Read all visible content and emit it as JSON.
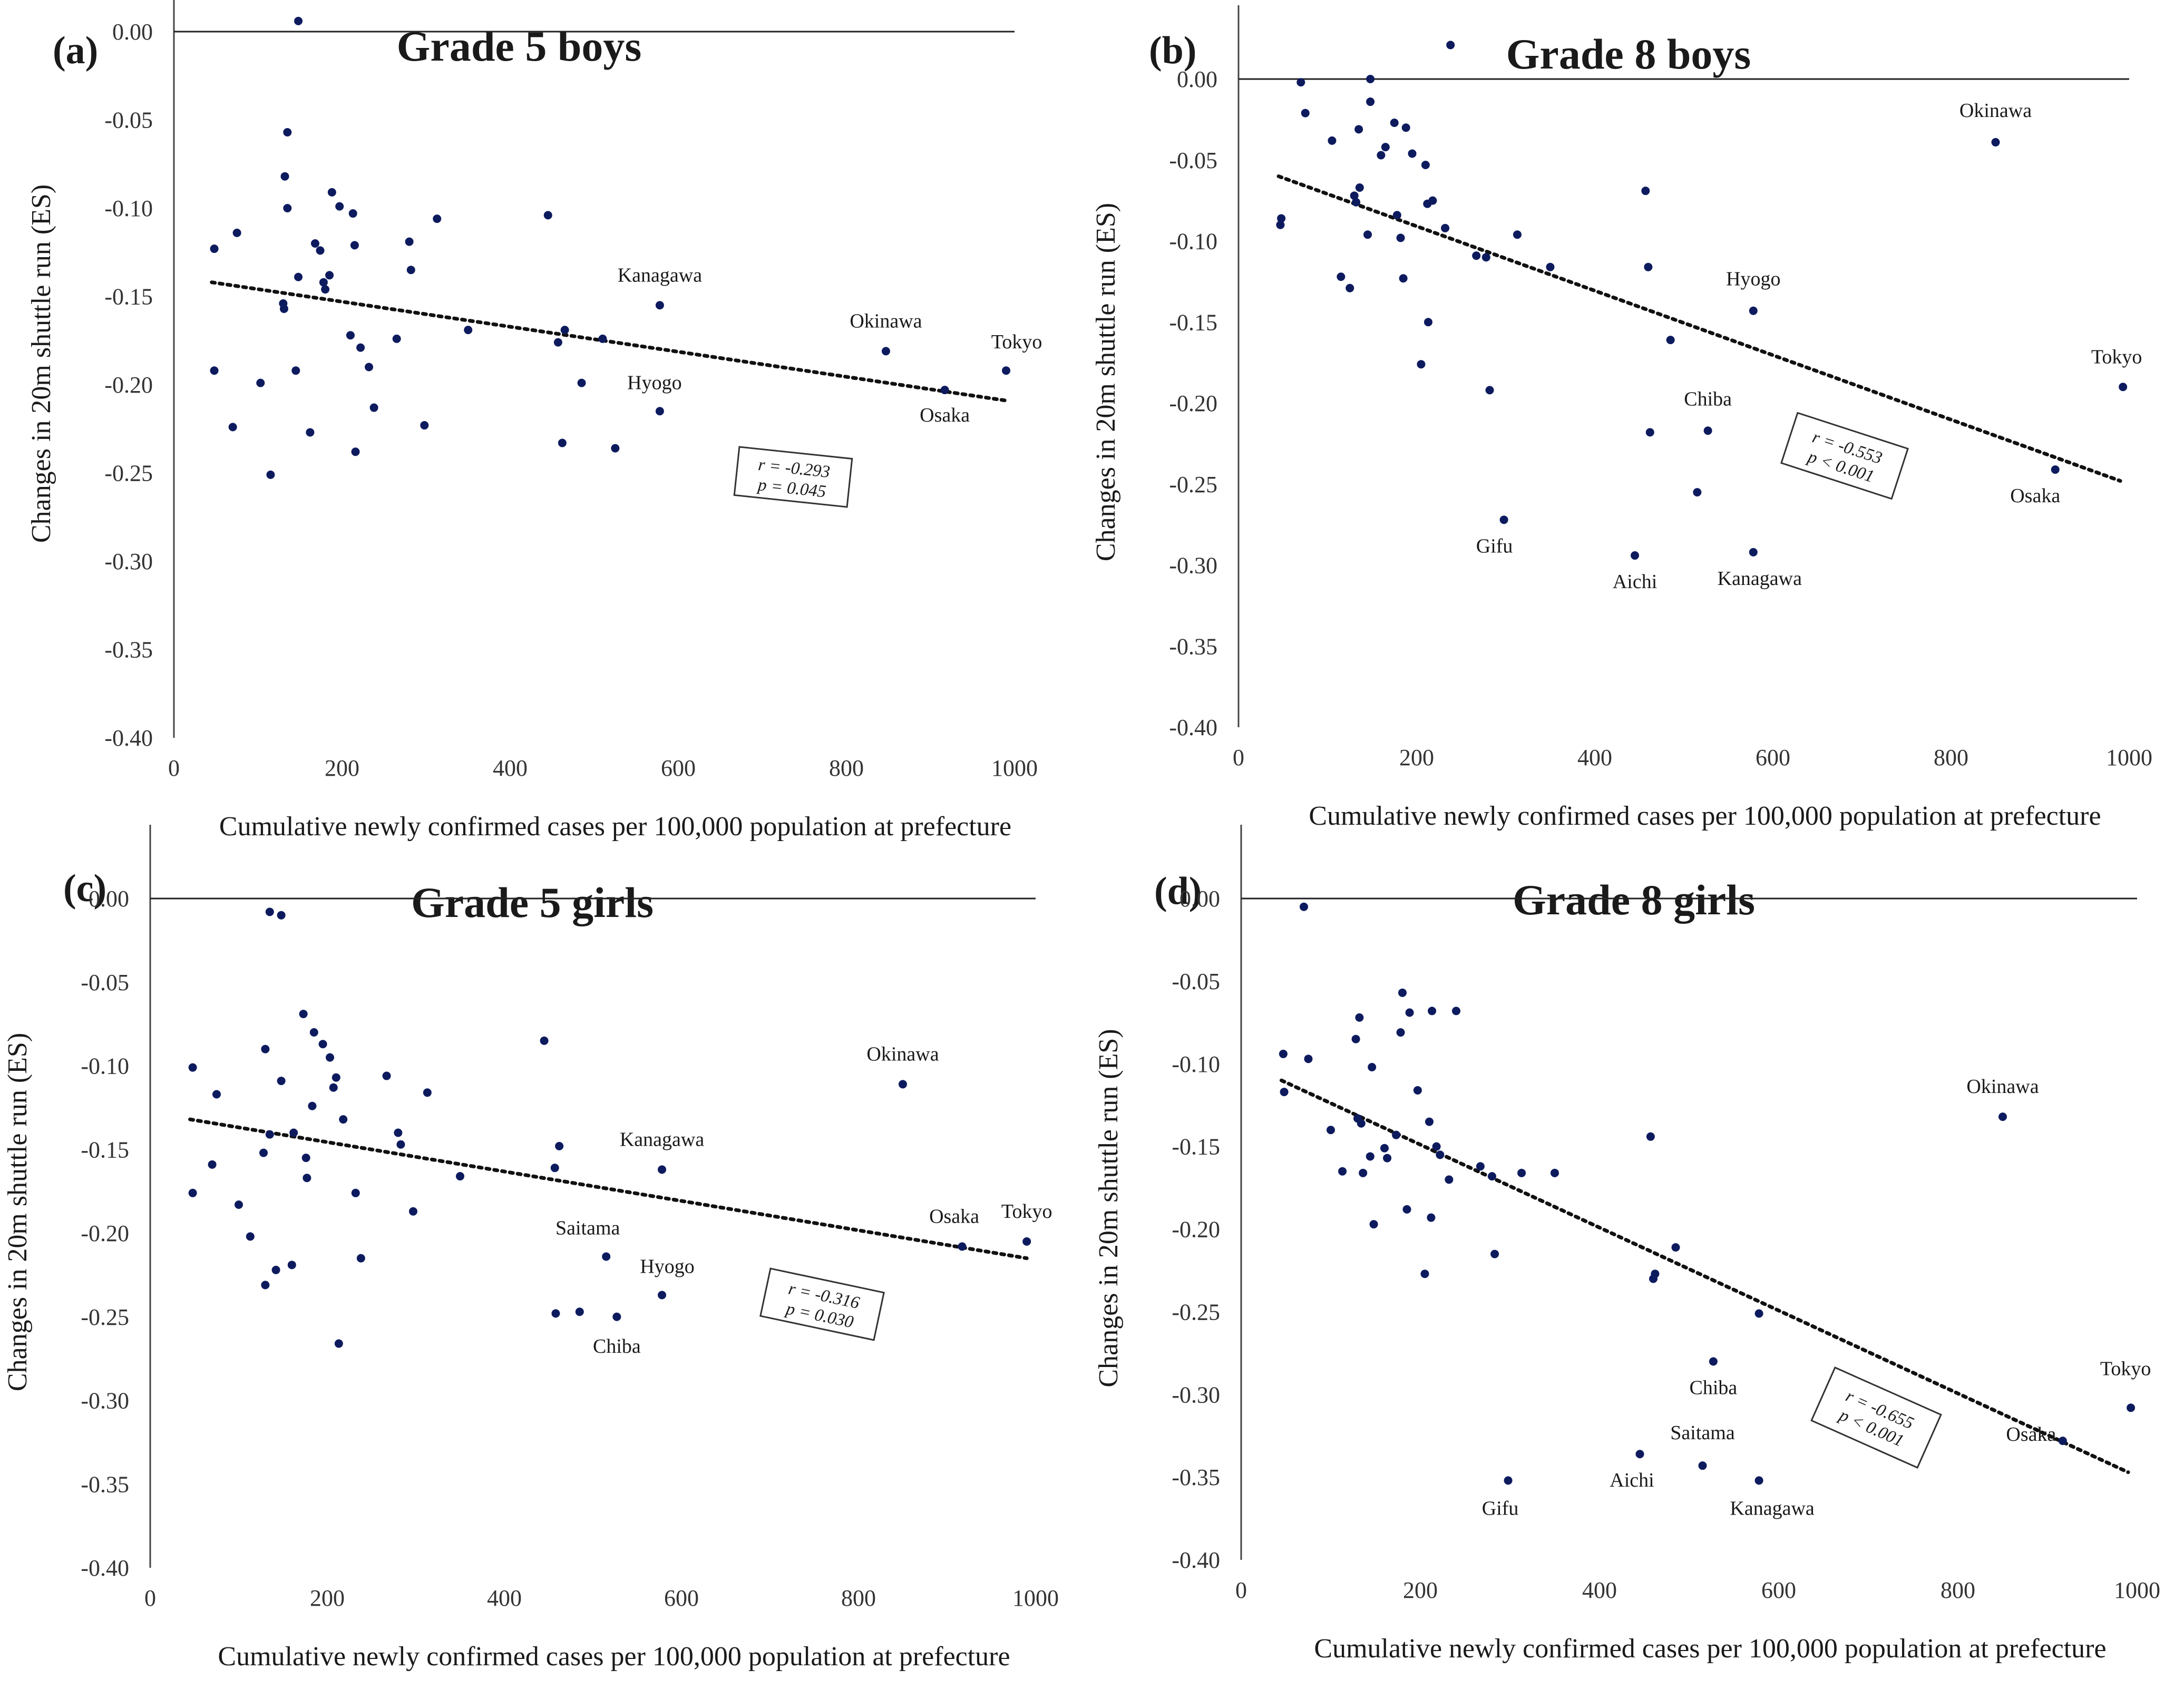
{
  "chart_data": [
    {
      "type": "scatter",
      "panel_label": "(a)",
      "title": "Grade 5 boys",
      "xlabel": "Cumulative newly confirmed cases per 100,000 population at prefecture",
      "ylabel": "Changes in 20m shuttle run (ES)",
      "xlim": [
        0,
        1000
      ],
      "ylim": [
        -0.4,
        0.0
      ],
      "x_ticks": [
        "0",
        "200",
        "400",
        "600",
        "800",
        "1000"
      ],
      "y_ticks": [
        "0.00",
        "-0.05",
        "-0.10",
        "-0.15",
        "-0.20",
        "-0.25",
        "-0.30",
        "-0.35",
        "-0.40"
      ],
      "grid": false,
      "trendline": {
        "style": "dotted",
        "x": [
          45,
          990
        ],
        "y": [
          -0.142,
          -0.209
        ]
      },
      "stats": {
        "r": "r = -0.293",
        "p": "p = 0.045"
      },
      "points": [
        {
          "x": 148,
          "y": 0.006
        },
        {
          "x": 135,
          "y": -0.057
        },
        {
          "x": 132,
          "y": -0.082
        },
        {
          "x": 135,
          "y": -0.1
        },
        {
          "x": 75,
          "y": -0.114
        },
        {
          "x": 48,
          "y": -0.123
        },
        {
          "x": 148,
          "y": -0.139
        },
        {
          "x": 130,
          "y": -0.154
        },
        {
          "x": 131,
          "y": -0.157
        },
        {
          "x": 48,
          "y": -0.192
        },
        {
          "x": 103,
          "y": -0.199
        },
        {
          "x": 145,
          "y": -0.192
        },
        {
          "x": 70,
          "y": -0.224
        },
        {
          "x": 115,
          "y": -0.251
        },
        {
          "x": 162,
          "y": -0.227
        },
        {
          "x": 168,
          "y": -0.12
        },
        {
          "x": 174,
          "y": -0.124
        },
        {
          "x": 178,
          "y": -0.142
        },
        {
          "x": 180,
          "y": -0.146
        },
        {
          "x": 185,
          "y": -0.138
        },
        {
          "x": 188,
          "y": -0.091
        },
        {
          "x": 197,
          "y": -0.099
        },
        {
          "x": 210,
          "y": -0.172
        },
        {
          "x": 213,
          "y": -0.103
        },
        {
          "x": 215,
          "y": -0.121
        },
        {
          "x": 216,
          "y": -0.238
        },
        {
          "x": 222,
          "y": -0.179
        },
        {
          "x": 232,
          "y": -0.19
        },
        {
          "x": 238,
          "y": -0.213
        },
        {
          "x": 265,
          "y": -0.174
        },
        {
          "x": 280,
          "y": -0.119
        },
        {
          "x": 282,
          "y": -0.135
        },
        {
          "x": 298,
          "y": -0.223
        },
        {
          "x": 313,
          "y": -0.106
        },
        {
          "x": 350,
          "y": -0.169
        },
        {
          "x": 445,
          "y": -0.104
        },
        {
          "x": 457,
          "y": -0.176
        },
        {
          "x": 462,
          "y": -0.233
        },
        {
          "x": 465,
          "y": -0.169
        },
        {
          "x": 485,
          "y": -0.199
        },
        {
          "x": 510,
          "y": -0.174
        },
        {
          "x": 525,
          "y": -0.236
        },
        {
          "x": 578,
          "y": -0.155
        },
        {
          "x": 578,
          "y": -0.215
        },
        {
          "x": 847,
          "y": -0.181
        },
        {
          "x": 917,
          "y": -0.203
        },
        {
          "x": 990,
          "y": -0.192
        }
      ],
      "point_labels": [
        {
          "text": "Kanagawa",
          "x": 578,
          "y": -0.155
        },
        {
          "text": "Hyogo",
          "x": 578,
          "y": -0.215
        },
        {
          "text": "Okinawa",
          "x": 847,
          "y": -0.181
        },
        {
          "text": "Osaka",
          "x": 917,
          "y": -0.203
        },
        {
          "text": "Tokyo",
          "x": 990,
          "y": -0.192
        }
      ]
    },
    {
      "type": "scatter",
      "panel_label": "(b)",
      "title": "Grade 8 boys",
      "xlabel": "Cumulative newly confirmed cases per 100,000 population at prefecture",
      "ylabel": "Changes in 20m shuttle run (ES)",
      "xlim": [
        0,
        1000
      ],
      "ylim": [
        -0.4,
        0.0
      ],
      "x_ticks": [
        "0",
        "200",
        "400",
        "600",
        "800",
        "1000"
      ],
      "y_ticks": [
        "0.00",
        "-0.05",
        "-0.10",
        "-0.15",
        "-0.20",
        "-0.25",
        "-0.30",
        "-0.35",
        "-0.40"
      ],
      "grid": false,
      "trendline": {
        "style": "dotted",
        "x": [
          45,
          990
        ],
        "y": [
          -0.06,
          -0.248
        ]
      },
      "stats": {
        "r": "r = -0.553",
        "p": "p < 0.001"
      },
      "points": [
        {
          "x": 238,
          "y": 0.021
        },
        {
          "x": 70,
          "y": -0.002
        },
        {
          "x": 148,
          "y": 0.0
        },
        {
          "x": 75,
          "y": -0.021
        },
        {
          "x": 105,
          "y": -0.038
        },
        {
          "x": 48,
          "y": -0.086
        },
        {
          "x": 47,
          "y": -0.09
        },
        {
          "x": 115,
          "y": -0.122
        },
        {
          "x": 125,
          "y": -0.129
        },
        {
          "x": 130,
          "y": -0.072
        },
        {
          "x": 132,
          "y": -0.076
        },
        {
          "x": 135,
          "y": -0.031
        },
        {
          "x": 136,
          "y": -0.067
        },
        {
          "x": 145,
          "y": -0.096
        },
        {
          "x": 148,
          "y": -0.014
        },
        {
          "x": 160,
          "y": -0.047
        },
        {
          "x": 165,
          "y": -0.042
        },
        {
          "x": 175,
          "y": -0.027
        },
        {
          "x": 178,
          "y": -0.084
        },
        {
          "x": 182,
          "y": -0.098
        },
        {
          "x": 185,
          "y": -0.123
        },
        {
          "x": 188,
          "y": -0.03
        },
        {
          "x": 195,
          "y": -0.046
        },
        {
          "x": 205,
          "y": -0.176
        },
        {
          "x": 210,
          "y": -0.053
        },
        {
          "x": 212,
          "y": -0.077
        },
        {
          "x": 213,
          "y": -0.15
        },
        {
          "x": 218,
          "y": -0.075
        },
        {
          "x": 232,
          "y": -0.092
        },
        {
          "x": 267,
          "y": -0.109
        },
        {
          "x": 278,
          "y": -0.11
        },
        {
          "x": 282,
          "y": -0.192
        },
        {
          "x": 298,
          "y": -0.272
        },
        {
          "x": 313,
          "y": -0.096
        },
        {
          "x": 350,
          "y": -0.116
        },
        {
          "x": 445,
          "y": -0.294
        },
        {
          "x": 457,
          "y": -0.069
        },
        {
          "x": 460,
          "y": -0.116
        },
        {
          "x": 462,
          "y": -0.218
        },
        {
          "x": 485,
          "y": -0.161
        },
        {
          "x": 515,
          "y": -0.255
        },
        {
          "x": 527,
          "y": -0.217
        },
        {
          "x": 578,
          "y": -0.143
        },
        {
          "x": 578,
          "y": -0.292
        },
        {
          "x": 850,
          "y": -0.039
        },
        {
          "x": 917,
          "y": -0.241
        },
        {
          "x": 993,
          "y": -0.19
        }
      ],
      "point_labels": [
        {
          "text": "Okinawa",
          "x": 850,
          "y": -0.039
        },
        {
          "text": "Hyogo",
          "x": 578,
          "y": -0.143
        },
        {
          "text": "Tokyo",
          "x": 993,
          "y": -0.19
        },
        {
          "text": "Chiba",
          "x": 527,
          "y": -0.217
        },
        {
          "text": "Osaka",
          "x": 917,
          "y": -0.241
        },
        {
          "text": "Gifu",
          "x": 298,
          "y": -0.272
        },
        {
          "text": "Aichi",
          "x": 445,
          "y": -0.294
        },
        {
          "text": "Kanagawa",
          "x": 578,
          "y": -0.292
        }
      ]
    },
    {
      "type": "scatter",
      "panel_label": "(c)",
      "title": "Grade 5 girls",
      "xlabel": "Cumulative newly confirmed cases per 100,000 population at prefecture",
      "ylabel": "Changes in 20m shuttle run (ES)",
      "xlim": [
        0,
        1000
      ],
      "ylim": [
        -0.4,
        0.0
      ],
      "x_ticks": [
        "0",
        "200",
        "400",
        "600",
        "800",
        "1000"
      ],
      "y_ticks": [
        "0.00",
        "-0.05",
        "-0.10",
        "-0.15",
        "-0.20",
        "-0.25",
        "-0.30",
        "-0.35",
        "-0.40"
      ],
      "grid": false,
      "trendline": {
        "style": "dotted",
        "x": [
          45,
          990
        ],
        "y": [
          -0.132,
          -0.215
        ]
      },
      "stats": {
        "r": "r = -0.316",
        "p": "p = 0.030"
      },
      "points": [
        {
          "x": 135,
          "y": -0.008
        },
        {
          "x": 148,
          "y": -0.01
        },
        {
          "x": 48,
          "y": -0.101
        },
        {
          "x": 75,
          "y": -0.117
        },
        {
          "x": 48,
          "y": -0.176
        },
        {
          "x": 70,
          "y": -0.159
        },
        {
          "x": 100,
          "y": -0.183
        },
        {
          "x": 113,
          "y": -0.202
        },
        {
          "x": 130,
          "y": -0.09
        },
        {
          "x": 128,
          "y": -0.152
        },
        {
          "x": 130,
          "y": -0.231
        },
        {
          "x": 135,
          "y": -0.141
        },
        {
          "x": 142,
          "y": -0.222
        },
        {
          "x": 148,
          "y": -0.109
        },
        {
          "x": 160,
          "y": -0.219
        },
        {
          "x": 162,
          "y": -0.14
        },
        {
          "x": 173,
          "y": -0.069
        },
        {
          "x": 176,
          "y": -0.155
        },
        {
          "x": 177,
          "y": -0.167
        },
        {
          "x": 183,
          "y": -0.124
        },
        {
          "x": 185,
          "y": -0.08
        },
        {
          "x": 195,
          "y": -0.087
        },
        {
          "x": 203,
          "y": -0.095
        },
        {
          "x": 207,
          "y": -0.113
        },
        {
          "x": 210,
          "y": -0.107
        },
        {
          "x": 213,
          "y": -0.266
        },
        {
          "x": 218,
          "y": -0.132
        },
        {
          "x": 232,
          "y": -0.176
        },
        {
          "x": 238,
          "y": -0.215
        },
        {
          "x": 267,
          "y": -0.106
        },
        {
          "x": 280,
          "y": -0.14
        },
        {
          "x": 283,
          "y": -0.147
        },
        {
          "x": 297,
          "y": -0.187
        },
        {
          "x": 313,
          "y": -0.116
        },
        {
          "x": 350,
          "y": -0.166
        },
        {
          "x": 445,
          "y": -0.085
        },
        {
          "x": 457,
          "y": -0.161
        },
        {
          "x": 458,
          "y": -0.248
        },
        {
          "x": 462,
          "y": -0.148
        },
        {
          "x": 485,
          "y": -0.247
        },
        {
          "x": 515,
          "y": -0.214
        },
        {
          "x": 527,
          "y": -0.25
        },
        {
          "x": 578,
          "y": -0.162
        },
        {
          "x": 578,
          "y": -0.237
        },
        {
          "x": 850,
          "y": -0.111
        },
        {
          "x": 917,
          "y": -0.208
        },
        {
          "x": 990,
          "y": -0.205
        }
      ],
      "point_labels": [
        {
          "text": "Okinawa",
          "x": 850,
          "y": -0.111
        },
        {
          "text": "Kanagawa",
          "x": 578,
          "y": -0.162
        },
        {
          "text": "Osaka",
          "x": 917,
          "y": -0.208
        },
        {
          "text": "Tokyo",
          "x": 990,
          "y": -0.205
        },
        {
          "text": "Saitama",
          "x": 515,
          "y": -0.214
        },
        {
          "text": "Hyogo",
          "x": 578,
          "y": -0.237
        },
        {
          "text": "Chiba",
          "x": 527,
          "y": -0.25
        }
      ]
    },
    {
      "type": "scatter",
      "panel_label": "(d)",
      "title": "Grade 8 girls",
      "xlabel": "Cumulative newly confirmed cases per 100,000 population at prefecture",
      "ylabel": "Changes in 20m shuttle run (ES)",
      "xlim": [
        0,
        1000
      ],
      "ylim": [
        -0.4,
        0.0
      ],
      "x_ticks": [
        "0",
        "200",
        "400",
        "600",
        "800",
        "1000"
      ],
      "y_ticks": [
        "0.00",
        "-0.05",
        "-0.10",
        "-0.15",
        "-0.20",
        "-0.25",
        "-0.30",
        "-0.35",
        "-0.40"
      ],
      "grid": false,
      "trendline": {
        "style": "dotted",
        "x": [
          45,
          990
        ],
        "y": [
          -0.11,
          -0.347
        ]
      },
      "stats": {
        "r": "r = -0.655",
        "p": "p < 0.001"
      },
      "points": [
        {
          "x": 70,
          "y": -0.005
        },
        {
          "x": 47,
          "y": -0.094
        },
        {
          "x": 48,
          "y": -0.117
        },
        {
          "x": 75,
          "y": -0.097
        },
        {
          "x": 100,
          "y": -0.14
        },
        {
          "x": 113,
          "y": -0.165
        },
        {
          "x": 128,
          "y": -0.085
        },
        {
          "x": 130,
          "y": -0.133
        },
        {
          "x": 132,
          "y": -0.072
        },
        {
          "x": 134,
          "y": -0.136
        },
        {
          "x": 136,
          "y": -0.166
        },
        {
          "x": 144,
          "y": -0.156
        },
        {
          "x": 146,
          "y": -0.102
        },
        {
          "x": 148,
          "y": -0.197
        },
        {
          "x": 160,
          "y": -0.151
        },
        {
          "x": 163,
          "y": -0.157
        },
        {
          "x": 173,
          "y": -0.143
        },
        {
          "x": 178,
          "y": -0.081
        },
        {
          "x": 180,
          "y": -0.057
        },
        {
          "x": 185,
          "y": -0.188
        },
        {
          "x": 188,
          "y": -0.069
        },
        {
          "x": 197,
          "y": -0.116
        },
        {
          "x": 205,
          "y": -0.227
        },
        {
          "x": 210,
          "y": -0.135
        },
        {
          "x": 212,
          "y": -0.193
        },
        {
          "x": 213,
          "y": -0.068
        },
        {
          "x": 218,
          "y": -0.15
        },
        {
          "x": 222,
          "y": -0.155
        },
        {
          "x": 232,
          "y": -0.17
        },
        {
          "x": 240,
          "y": -0.068
        },
        {
          "x": 267,
          "y": -0.162
        },
        {
          "x": 280,
          "y": -0.168
        },
        {
          "x": 283,
          "y": -0.215
        },
        {
          "x": 298,
          "y": -0.352
        },
        {
          "x": 313,
          "y": -0.166
        },
        {
          "x": 350,
          "y": -0.166
        },
        {
          "x": 445,
          "y": -0.336
        },
        {
          "x": 457,
          "y": -0.144
        },
        {
          "x": 460,
          "y": -0.23
        },
        {
          "x": 462,
          "y": -0.227
        },
        {
          "x": 485,
          "y": -0.211
        },
        {
          "x": 515,
          "y": -0.343
        },
        {
          "x": 527,
          "y": -0.28
        },
        {
          "x": 578,
          "y": -0.251
        },
        {
          "x": 578,
          "y": -0.352
        },
        {
          "x": 850,
          "y": -0.132
        },
        {
          "x": 917,
          "y": -0.328
        },
        {
          "x": 993,
          "y": -0.308
        }
      ],
      "point_labels": [
        {
          "text": "Okinawa",
          "x": 850,
          "y": -0.132
        },
        {
          "text": "Chiba",
          "x": 527,
          "y": -0.28
        },
        {
          "text": "Tokyo",
          "x": 993,
          "y": -0.308
        },
        {
          "text": "Osaka",
          "x": 917,
          "y": -0.328
        },
        {
          "text": "Saitama",
          "x": 515,
          "y": -0.343
        },
        {
          "text": "Aichi",
          "x": 445,
          "y": -0.336
        },
        {
          "text": "Gifu",
          "x": 298,
          "y": -0.352
        },
        {
          "text": "Kanagawa",
          "x": 578,
          "y": -0.352
        }
      ]
    }
  ],
  "colors": {
    "point": "#0d1b5e",
    "axis": "#444444",
    "trend": "#111111",
    "text": "#1a1a1a"
  }
}
